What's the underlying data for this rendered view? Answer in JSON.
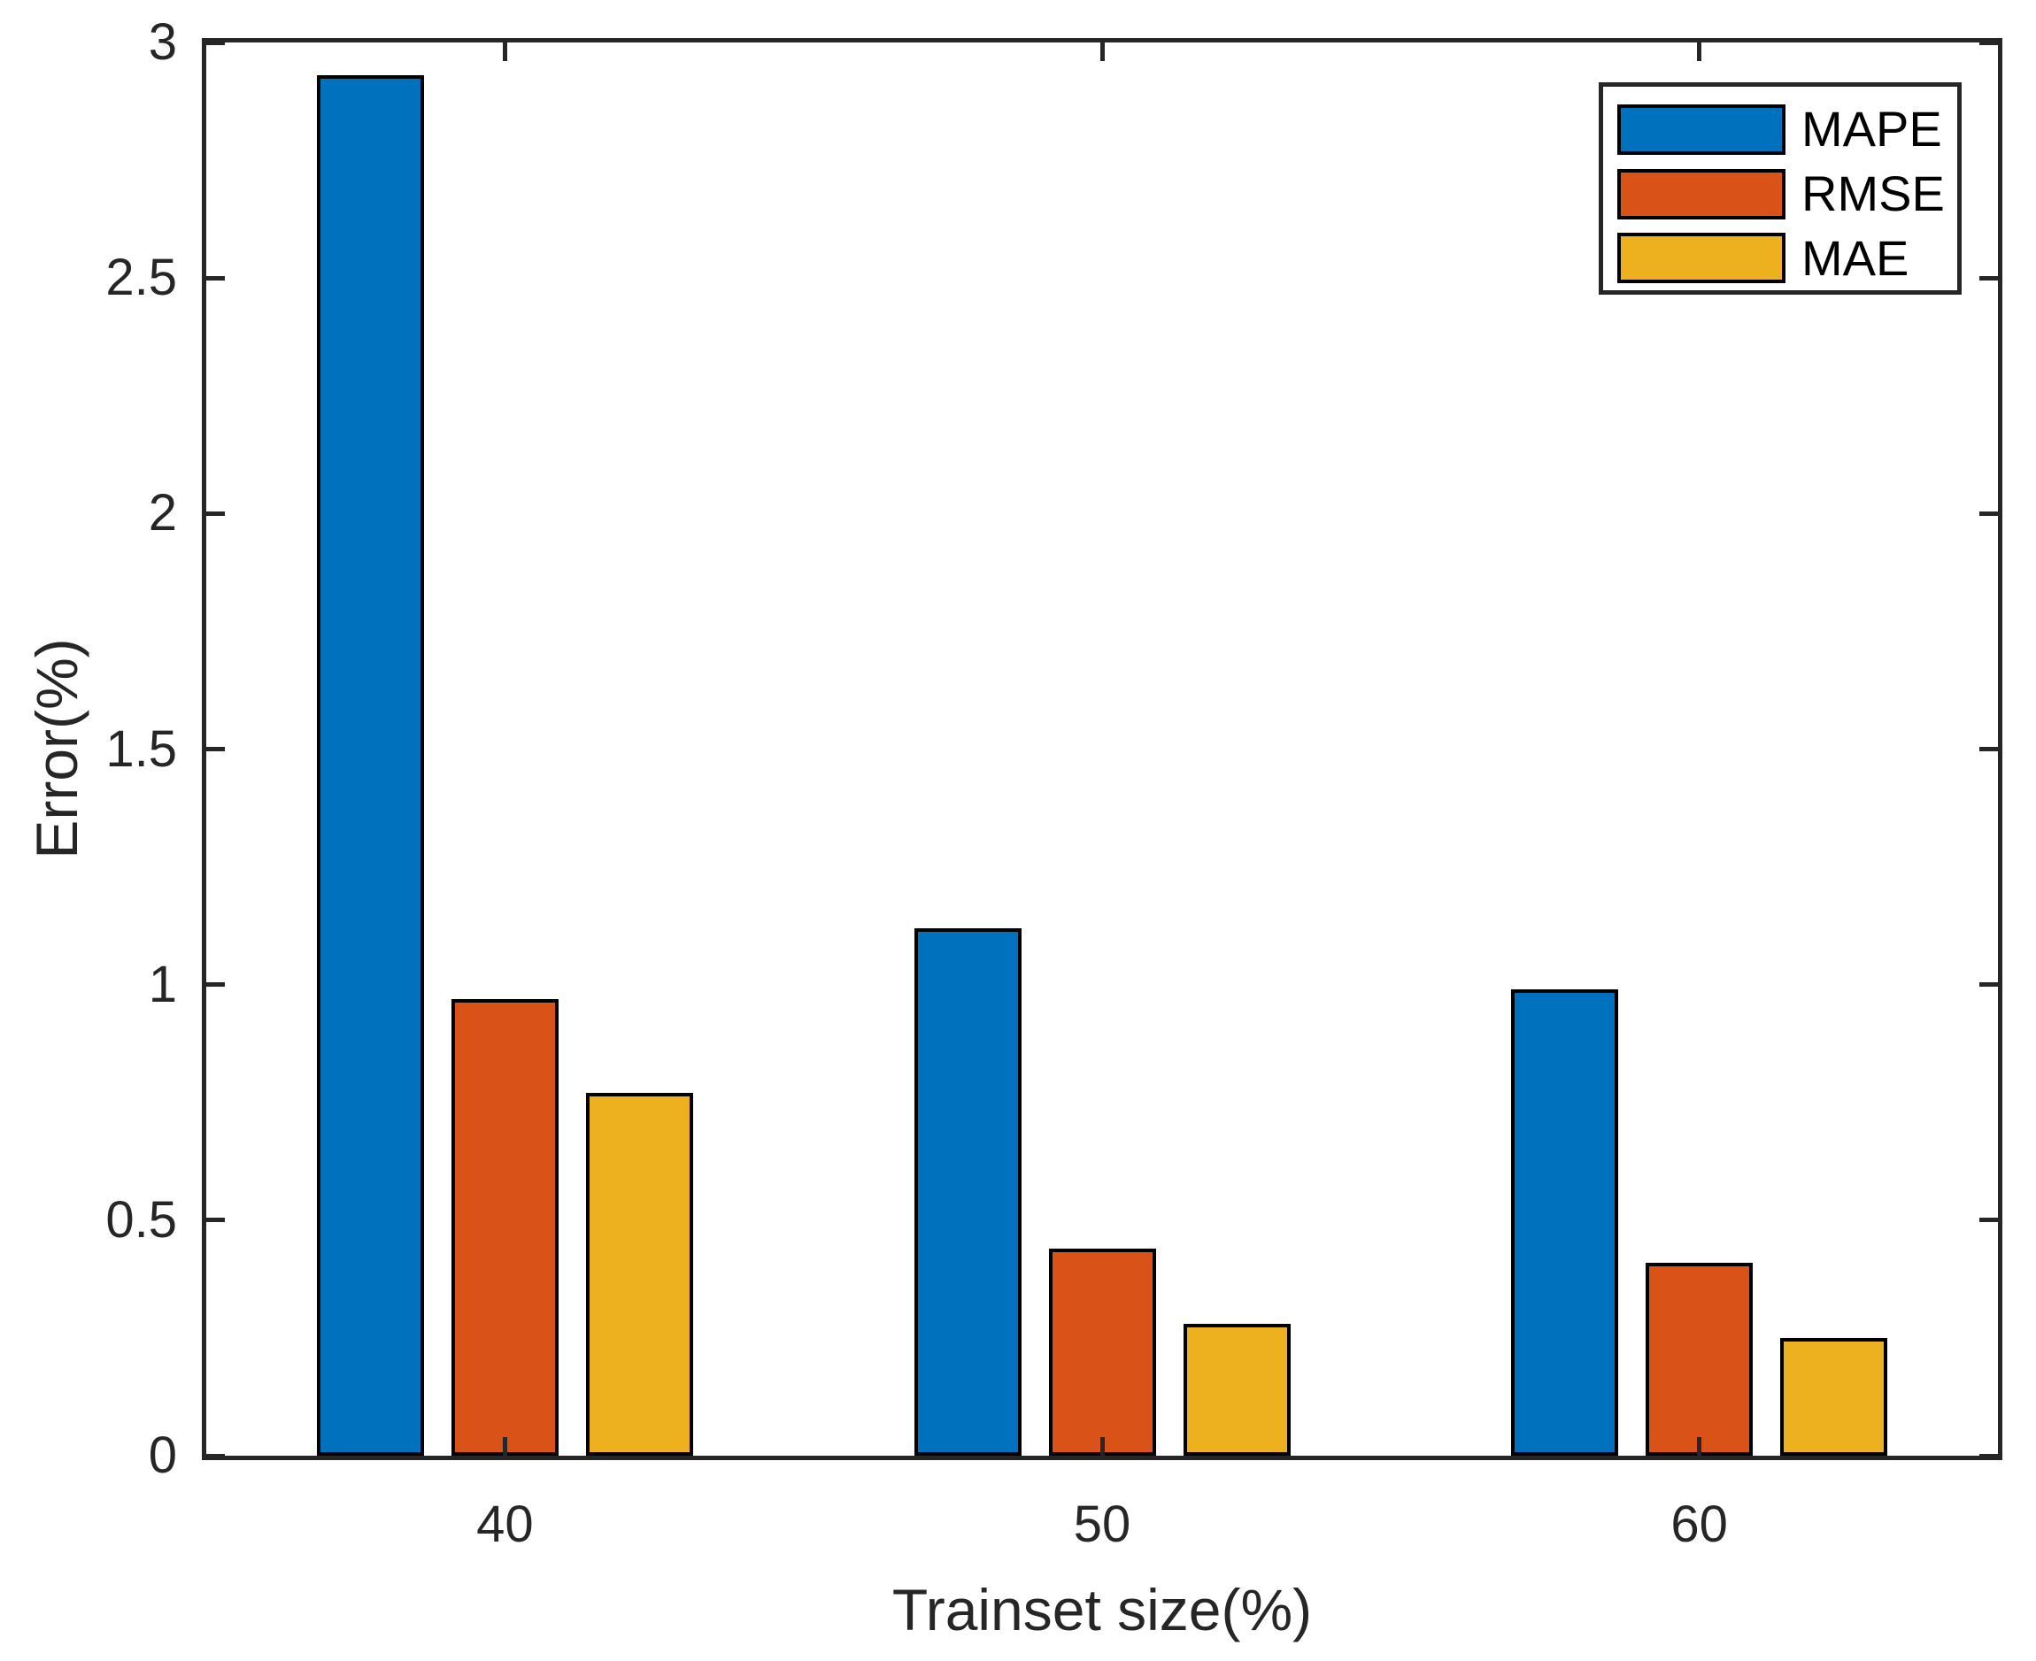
{
  "chart_data": {
    "type": "bar",
    "title": "",
    "xlabel": "Trainset size(%)",
    "ylabel": "Error(%)",
    "categories": [
      "40",
      "50",
      "60"
    ],
    "series": [
      {
        "name": "MAPE",
        "color": "#0072BD",
        "values": [
          2.93,
          1.12,
          0.99
        ]
      },
      {
        "name": "RMSE",
        "color": "#D95319",
        "values": [
          0.97,
          0.44,
          0.41
        ]
      },
      {
        "name": "MAE",
        "color": "#EDB120",
        "values": [
          0.77,
          0.28,
          0.25
        ]
      }
    ],
    "ylim": [
      0,
      3
    ],
    "yticks": [
      0,
      0.5,
      1,
      1.5,
      2,
      2.5,
      3
    ],
    "ytick_labels": [
      "0",
      "0.5",
      "1",
      "1.5",
      "2",
      "2.5",
      "3"
    ],
    "grid": false,
    "legend_position": "top-right",
    "bar_edge_color": "#000000",
    "axis_color": "#262626",
    "background_color": "#ffffff"
  }
}
